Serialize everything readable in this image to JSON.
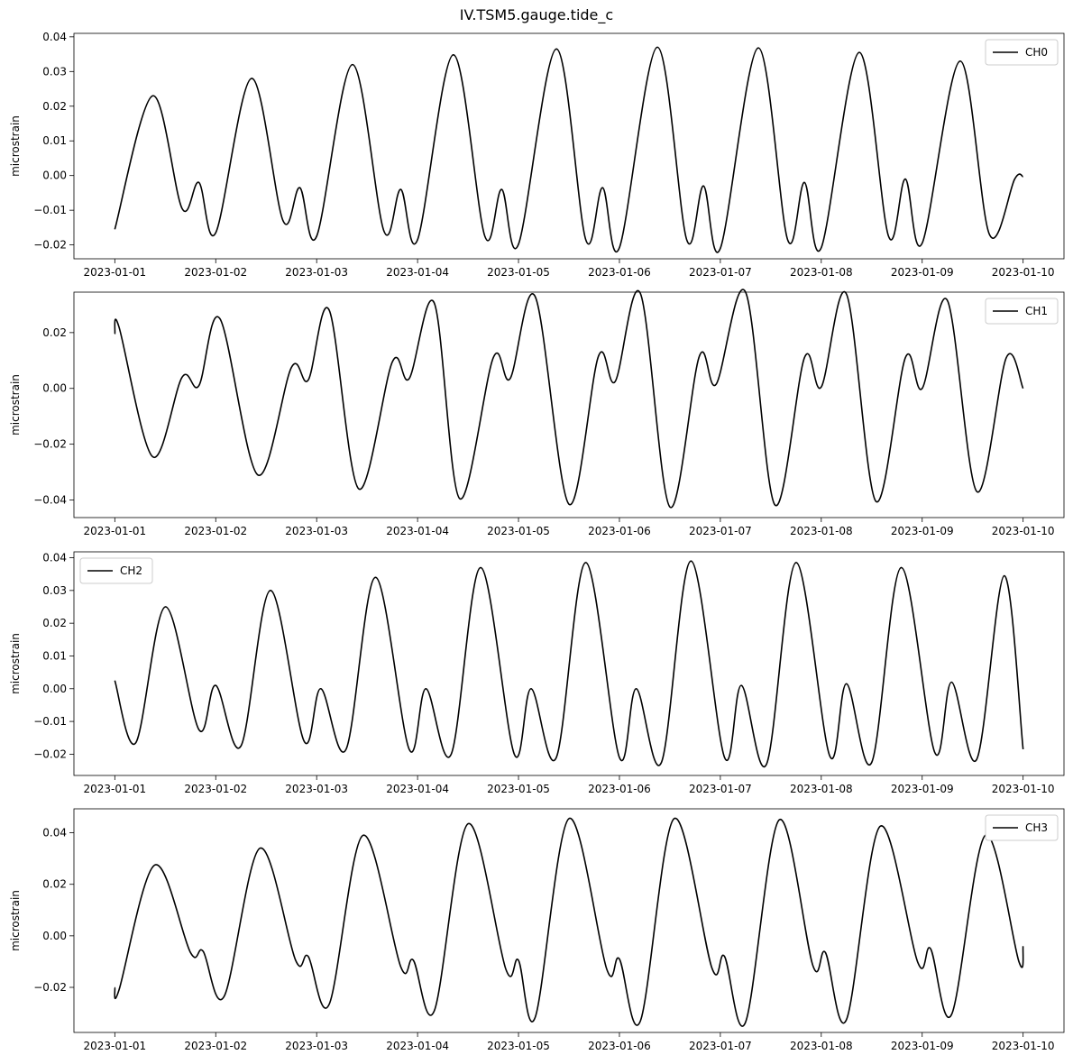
{
  "figure_title": "IV.TSM5.gauge.tide_c",
  "chart_data": [
    {
      "type": "line",
      "ylabel": "microstrain",
      "xlabel": "",
      "x_ticks": [
        "2023-01-01",
        "2023-01-02",
        "2023-01-03",
        "2023-01-04",
        "2023-01-05",
        "2023-01-06",
        "2023-01-07",
        "2023-01-08",
        "2023-01-09",
        "2023-01-10"
      ],
      "xlim": [
        "2023-01-01",
        "2023-01-10"
      ],
      "ylim": [
        -0.024,
        0.041
      ],
      "y_ticks": [
        -0.02,
        -0.01,
        0.0,
        0.01,
        0.02,
        0.03,
        0.04
      ],
      "y_tick_labels": [
        "−0.02",
        "−0.01",
        "0.00",
        "0.01",
        "0.02",
        "0.03",
        "0.04"
      ],
      "legend_position": "top-right",
      "series": [
        {
          "name": "CH0",
          "color": "#000000",
          "points": [
            [
              "2023-01-01T00:00",
              -0.0155
            ],
            [
              "2023-01-01T09:00",
              0.023
            ],
            [
              "2023-01-01T16:00",
              -0.0095
            ],
            [
              "2023-01-01T20:00",
              -0.002
            ],
            [
              "2023-01-02T00:00",
              -0.0165
            ],
            [
              "2023-01-02T08:30",
              0.028
            ],
            [
              "2023-01-02T16:00",
              -0.013
            ],
            [
              "2023-01-02T20:00",
              -0.0035
            ],
            [
              "2023-01-03T00:00",
              -0.0175
            ],
            [
              "2023-01-03T08:30",
              0.032
            ],
            [
              "2023-01-03T16:00",
              -0.016
            ],
            [
              "2023-01-03T20:00",
              -0.004
            ],
            [
              "2023-01-04T00:00",
              -0.0185
            ],
            [
              "2023-01-04T08:30",
              0.0348
            ],
            [
              "2023-01-04T16:00",
              -0.0175
            ],
            [
              "2023-01-04T20:00",
              -0.004
            ],
            [
              "2023-01-05T00:00",
              -0.0198
            ],
            [
              "2023-01-05T09:00",
              0.0365
            ],
            [
              "2023-01-05T16:00",
              -0.0185
            ],
            [
              "2023-01-05T20:00",
              -0.0035
            ],
            [
              "2023-01-06T00:00",
              -0.0208
            ],
            [
              "2023-01-06T09:00",
              0.037
            ],
            [
              "2023-01-06T16:00",
              -0.0185
            ],
            [
              "2023-01-06T20:00",
              -0.003
            ],
            [
              "2023-01-07T00:00",
              -0.021
            ],
            [
              "2023-01-07T09:00",
              0.0368
            ],
            [
              "2023-01-07T16:00",
              -0.0185
            ],
            [
              "2023-01-07T20:00",
              -0.002
            ],
            [
              "2023-01-08T00:00",
              -0.0208
            ],
            [
              "2023-01-08T09:00",
              0.0355
            ],
            [
              "2023-01-08T16:00",
              -0.0175
            ],
            [
              "2023-01-08T20:00",
              -0.001
            ],
            [
              "2023-01-09T00:00",
              -0.0195
            ],
            [
              "2023-01-09T09:00",
              0.033
            ],
            [
              "2023-01-09T16:00",
              -0.017
            ],
            [
              "2023-01-09T22:00",
              -0.001
            ],
            [
              "2023-01-10T00:00",
              -0.0003
            ]
          ]
        }
      ]
    },
    {
      "type": "line",
      "ylabel": "microstrain",
      "xlabel": "",
      "x_ticks": [
        "2023-01-01",
        "2023-01-02",
        "2023-01-03",
        "2023-01-04",
        "2023-01-05",
        "2023-01-06",
        "2023-01-07",
        "2023-01-08",
        "2023-01-09",
        "2023-01-10"
      ],
      "xlim": [
        "2023-01-01",
        "2023-01-10"
      ],
      "ylim": [
        -0.0463,
        0.0345
      ],
      "y_ticks": [
        -0.04,
        -0.02,
        0.0,
        0.02
      ],
      "y_tick_labels": [
        "−0.04",
        "−0.02",
        "0.00",
        "0.02"
      ],
      "legend_position": "top-right",
      "series": [
        {
          "name": "CH1",
          "color": "#000000",
          "points": [
            [
              "2023-01-01T00:00",
              0.0195
            ],
            [
              "2023-01-01T01:00",
              0.022
            ],
            [
              "2023-01-01T09:00",
              -0.0245
            ],
            [
              "2023-01-01T16:00",
              0.004
            ],
            [
              "2023-01-01T20:00",
              0.001
            ],
            [
              "2023-01-02T01:00",
              0.025
            ],
            [
              "2023-01-02T10:00",
              -0.031
            ],
            [
              "2023-01-02T18:00",
              0.0075
            ],
            [
              "2023-01-02T22:00",
              0.003
            ],
            [
              "2023-01-03T03:00",
              0.028
            ],
            [
              "2023-01-03T10:00",
              -0.036
            ],
            [
              "2023-01-03T18:00",
              0.0095
            ],
            [
              "2023-01-03T22:00",
              0.0035
            ],
            [
              "2023-01-04T04:00",
              0.0305
            ],
            [
              "2023-01-04T10:00",
              -0.0395
            ],
            [
              "2023-01-04T18:00",
              0.011
            ],
            [
              "2023-01-04T22:00",
              0.0035
            ],
            [
              "2023-01-05T04:00",
              0.0328
            ],
            [
              "2023-01-05T12:00",
              -0.0415
            ],
            [
              "2023-01-05T19:00",
              0.0115
            ],
            [
              "2023-01-05T23:00",
              0.0025
            ],
            [
              "2023-01-06T05:00",
              0.034
            ],
            [
              "2023-01-06T12:00",
              -0.0425
            ],
            [
              "2023-01-06T19:00",
              0.0115
            ],
            [
              "2023-01-06T23:00",
              0.0015
            ],
            [
              "2023-01-07T06:00",
              0.0345
            ],
            [
              "2023-01-07T13:00",
              -0.0418
            ],
            [
              "2023-01-07T20:00",
              0.011
            ],
            [
              "2023-01-08T00:00",
              0.0005
            ],
            [
              "2023-01-08T06:00",
              0.0338
            ],
            [
              "2023-01-08T13:00",
              -0.0405
            ],
            [
              "2023-01-08T20:00",
              0.011
            ],
            [
              "2023-01-09T00:00",
              0.0
            ],
            [
              "2023-01-09T06:00",
              0.0315
            ],
            [
              "2023-01-09T13:00",
              -0.037
            ],
            [
              "2023-01-09T20:00",
              0.011
            ],
            [
              "2023-01-10T00:00",
              0.0
            ]
          ]
        }
      ]
    },
    {
      "type": "line",
      "ylabel": "microstrain",
      "xlabel": "",
      "x_ticks": [
        "2023-01-01",
        "2023-01-02",
        "2023-01-03",
        "2023-01-04",
        "2023-01-05",
        "2023-01-06",
        "2023-01-07",
        "2023-01-08",
        "2023-01-09",
        "2023-01-10"
      ],
      "xlim": [
        "2023-01-01",
        "2023-01-10"
      ],
      "ylim": [
        -0.0265,
        0.0418
      ],
      "y_ticks": [
        -0.02,
        -0.01,
        0.0,
        0.01,
        0.02,
        0.03,
        0.04
      ],
      "y_tick_labels": [
        "−0.02",
        "−0.01",
        "0.00",
        "0.01",
        "0.02",
        "0.03",
        "0.04"
      ],
      "legend_position": "top-left",
      "series": [
        {
          "name": "CH2",
          "color": "#000000",
          "points": [
            [
              "2023-01-01T00:00",
              0.0025
            ],
            [
              "2023-01-01T05:00",
              -0.0165
            ],
            [
              "2023-01-01T12:00",
              0.025
            ],
            [
              "2023-01-01T20:00",
              -0.0125
            ],
            [
              "2023-01-02T00:00",
              0.001
            ],
            [
              "2023-01-02T06:00",
              -0.0175
            ],
            [
              "2023-01-02T13:00",
              0.03
            ],
            [
              "2023-01-02T21:00",
              -0.016
            ],
            [
              "2023-01-03T01:00",
              0.0
            ],
            [
              "2023-01-03T07:00",
              -0.0185
            ],
            [
              "2023-01-03T14:00",
              0.034
            ],
            [
              "2023-01-03T22:00",
              -0.0185
            ],
            [
              "2023-01-04T02:00",
              0.0
            ],
            [
              "2023-01-04T08:00",
              -0.02
            ],
            [
              "2023-01-04T15:00",
              0.037
            ],
            [
              "2023-01-04T23:00",
              -0.02
            ],
            [
              "2023-01-05T03:00",
              0.0
            ],
            [
              "2023-01-05T09:00",
              -0.021
            ],
            [
              "2023-01-05T16:00",
              0.0385
            ],
            [
              "2023-01-06T00:00",
              -0.021
            ],
            [
              "2023-01-06T04:00",
              0.0
            ],
            [
              "2023-01-06T10:00",
              -0.0225
            ],
            [
              "2023-01-06T17:00",
              0.039
            ],
            [
              "2023-01-07T01:00",
              -0.021
            ],
            [
              "2023-01-07T05:00",
              0.001
            ],
            [
              "2023-01-07T11:00",
              -0.023
            ],
            [
              "2023-01-07T18:00",
              0.0385
            ],
            [
              "2023-01-08T02:00",
              -0.0205
            ],
            [
              "2023-01-08T06:00",
              0.0015
            ],
            [
              "2023-01-08T12:00",
              -0.0225
            ],
            [
              "2023-01-08T19:00",
              0.037
            ],
            [
              "2023-01-09T03:00",
              -0.0195
            ],
            [
              "2023-01-09T07:00",
              0.002
            ],
            [
              "2023-01-09T13:00",
              -0.0215
            ],
            [
              "2023-01-09T19:30",
              0.0345
            ],
            [
              "2023-01-10T00:00",
              -0.0185
            ]
          ]
        }
      ]
    },
    {
      "type": "line",
      "ylabel": "microstrain",
      "xlabel": "",
      "x_ticks": [
        "2023-01-01",
        "2023-01-02",
        "2023-01-03",
        "2023-01-04",
        "2023-01-05",
        "2023-01-06",
        "2023-01-07",
        "2023-01-08",
        "2023-01-09",
        "2023-01-10"
      ],
      "xlim": [
        "2023-01-01",
        "2023-01-10"
      ],
      "ylim": [
        -0.0375,
        0.0493
      ],
      "y_ticks": [
        -0.02,
        0.0,
        0.02,
        0.04
      ],
      "y_tick_labels": [
        "−0.02",
        "0.00",
        "0.02",
        "0.04"
      ],
      "legend_position": "top-right",
      "series": [
        {
          "name": "CH3",
          "color": "#000000",
          "points": [
            [
              "2023-01-01T00:00",
              -0.02
            ],
            [
              "2023-01-01T01:00",
              -0.021
            ],
            [
              "2023-01-01T09:30",
              0.0275
            ],
            [
              "2023-01-01T18:00",
              -0.0065
            ],
            [
              "2023-01-01T21:00",
              -0.006
            ],
            [
              "2023-01-02T02:00",
              -0.0235
            ],
            [
              "2023-01-02T10:30",
              0.034
            ],
            [
              "2023-01-02T19:00",
              -0.0095
            ],
            [
              "2023-01-02T22:00",
              -0.008
            ],
            [
              "2023-01-03T03:00",
              -0.0265
            ],
            [
              "2023-01-03T11:00",
              0.039
            ],
            [
              "2023-01-03T20:00",
              -0.012
            ],
            [
              "2023-01-03T23:00",
              -0.0095
            ],
            [
              "2023-01-04T04:00",
              -0.029
            ],
            [
              "2023-01-04T12:00",
              0.0435
            ],
            [
              "2023-01-04T21:00",
              -0.013
            ],
            [
              "2023-01-05T00:00",
              -0.0095
            ],
            [
              "2023-01-05T04:00",
              -0.0315
            ],
            [
              "2023-01-05T12:00",
              0.0455
            ],
            [
              "2023-01-05T21:00",
              -0.013
            ],
            [
              "2023-01-06T00:00",
              -0.009
            ],
            [
              "2023-01-06T05:00",
              -0.033
            ],
            [
              "2023-01-06T13:00",
              0.0455
            ],
            [
              "2023-01-06T22:00",
              -0.0125
            ],
            [
              "2023-01-07T01:00",
              -0.008
            ],
            [
              "2023-01-07T06:00",
              -0.0335
            ],
            [
              "2023-01-07T14:00",
              0.045
            ],
            [
              "2023-01-07T22:00",
              -0.0115
            ],
            [
              "2023-01-08T01:00",
              -0.0065
            ],
            [
              "2023-01-08T06:00",
              -0.0325
            ],
            [
              "2023-01-08T14:00",
              0.0425
            ],
            [
              "2023-01-08T23:00",
              -0.0105
            ],
            [
              "2023-01-09T02:00",
              -0.005
            ],
            [
              "2023-01-09T07:00",
              -0.0305
            ],
            [
              "2023-01-09T15:00",
              0.039
            ],
            [
              "2023-01-09T23:00",
              -0.01
            ],
            [
              "2023-01-10T00:00",
              -0.004
            ]
          ]
        }
      ]
    }
  ]
}
